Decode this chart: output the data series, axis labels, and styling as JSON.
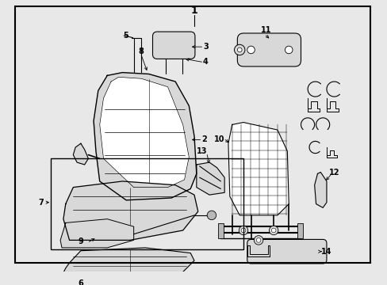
{
  "bg_color": "#e8e8e8",
  "border_color": "#000000",
  "lc": "#000000",
  "tc": "#000000",
  "figsize": [
    4.89,
    3.6
  ],
  "dpi": 100,
  "white": "#ffffff",
  "gray_light": "#d8d8d8",
  "gray_mid": "#b8b8b8"
}
